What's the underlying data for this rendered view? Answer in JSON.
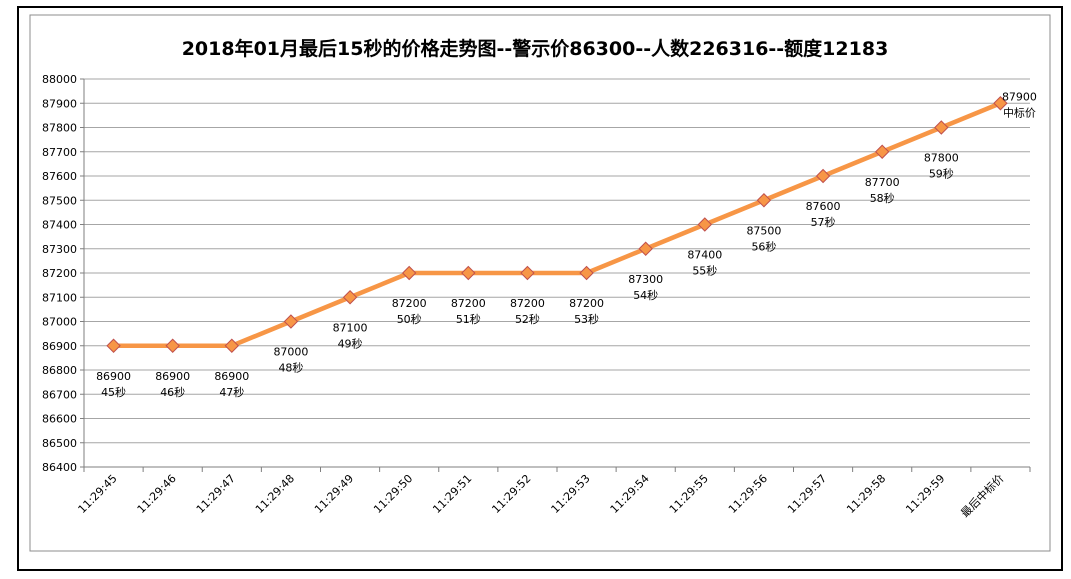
{
  "chart_data": {
    "type": "line",
    "title": "2018年01月最后15秒的价格走势图--警示价86300--人数226316--额度12183",
    "xlabel": "",
    "ylabel": "",
    "ylim": [
      86400,
      88000
    ],
    "ytick_step": 100,
    "grid": true,
    "legend": "none",
    "categories": [
      "11:29:45",
      "11:29:46",
      "11:29:47",
      "11:29:48",
      "11:29:49",
      "11:29:50",
      "11:29:51",
      "11:29:52",
      "11:29:53",
      "11:29:54",
      "11:29:55",
      "11:29:56",
      "11:29:57",
      "11:29:58",
      "11:29:59",
      "最后中标价"
    ],
    "series": [
      {
        "values": [
          86900,
          86900,
          86900,
          87000,
          87100,
          87200,
          87200,
          87200,
          87200,
          87300,
          87400,
          87500,
          87600,
          87700,
          87800,
          87900
        ],
        "labels": [
          "45秒",
          "46秒",
          "47秒",
          "48秒",
          "49秒",
          "50秒",
          "51秒",
          "52秒",
          "53秒",
          "54秒",
          "55秒",
          "56秒",
          "57秒",
          "58秒",
          "59秒",
          "中标价"
        ]
      }
    ],
    "colors": {
      "line": "#F79646",
      "marker": "#F79646",
      "marker_edge": "#C0504D",
      "grid": "#A6A6A6",
      "axis": "#7F7F7F"
    }
  }
}
